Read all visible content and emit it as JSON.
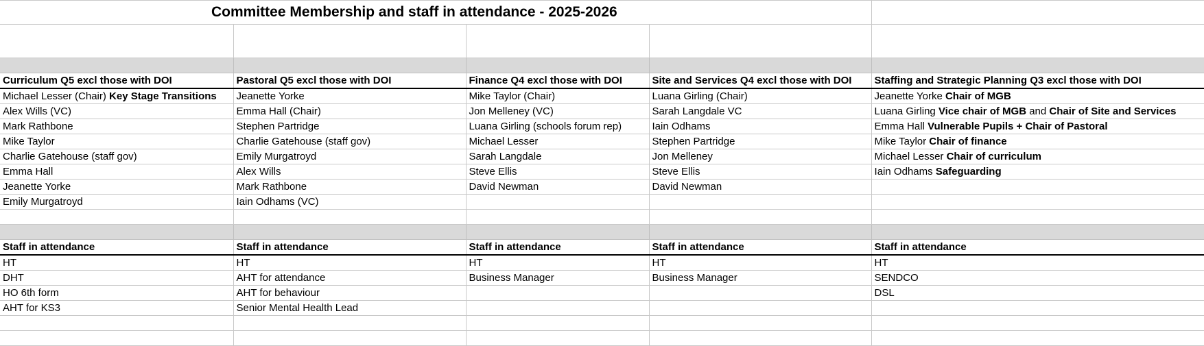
{
  "title": "Committee Membership and staff in attendance - 2025-2026",
  "committees": [
    {
      "header": "Curriculum  Q5 excl those with DOI",
      "members": [
        [
          {
            "t": "Michael Lesser (Chair) "
          },
          {
            "t": "Key Stage Transitions",
            "b": true
          }
        ],
        [
          {
            "t": "Alex Wills (VC)"
          }
        ],
        [
          {
            "t": "Mark Rathbone"
          }
        ],
        [
          {
            "t": "Mike Taylor"
          }
        ],
        [
          {
            "t": "Charlie Gatehouse (staff gov)"
          }
        ],
        [
          {
            "t": "Emma Hall"
          }
        ],
        [
          {
            "t": "Jeanette Yorke"
          }
        ],
        [
          {
            "t": "Emily Murgatroyd"
          }
        ]
      ],
      "staff_header": "Staff in attendance",
      "staff": [
        "HT",
        "DHT",
        "HO 6th form",
        "AHT for KS3"
      ]
    },
    {
      "header": "Pastoral  Q5 excl those with DOI",
      "members": [
        [
          {
            "t": "Jeanette Yorke"
          }
        ],
        [
          {
            "t": "Emma Hall  (Chair)"
          }
        ],
        [
          {
            "t": "Stephen Partridge"
          }
        ],
        [
          {
            "t": "Charlie Gatehouse (staff gov)"
          }
        ],
        [
          {
            "t": "Emily Murgatroyd"
          }
        ],
        [
          {
            "t": "Alex Wills"
          }
        ],
        [
          {
            "t": "Mark Rathbone"
          }
        ],
        [
          {
            "t": "Iain Odhams  (VC)"
          }
        ]
      ],
      "staff_header": "Staff in attendance",
      "staff": [
        "HT",
        "AHT for attendance",
        "AHT for behaviour",
        "Senior Mental Health Lead"
      ]
    },
    {
      "header": "Finance  Q4 excl those with DOI",
      "members": [
        [
          {
            "t": "Mike Taylor (Chair)"
          }
        ],
        [
          {
            "t": "Jon Melleney (VC)"
          }
        ],
        [
          {
            "t": "Luana Girling (schools forum rep)"
          }
        ],
        [
          {
            "t": "Michael Lesser"
          }
        ],
        [
          {
            "t": "Sarah Langdale"
          }
        ],
        [
          {
            "t": "Steve Ellis"
          }
        ],
        [
          {
            "t": "David Newman"
          }
        ]
      ],
      "staff_header": "Staff in attendance",
      "staff": [
        "HT",
        "Business Manager"
      ]
    },
    {
      "header": "Site and Services  Q4 excl those with DOI",
      "members": [
        [
          {
            "t": "Luana Girling (Chair)"
          }
        ],
        [
          {
            "t": "Sarah Langdale VC"
          }
        ],
        [
          {
            "t": "Iain Odhams"
          }
        ],
        [
          {
            "t": "Stephen Partridge"
          }
        ],
        [
          {
            "t": "Jon Melleney"
          }
        ],
        [
          {
            "t": "Steve Ellis"
          }
        ],
        [
          {
            "t": "David Newman"
          }
        ]
      ],
      "staff_header": "Staff in attendance",
      "staff": [
        "HT",
        "Business Manager"
      ]
    },
    {
      "header": "Staffing and Strategic Planning Q3 excl those with DOI",
      "members": [
        [
          {
            "t": "Jeanette Yorke "
          },
          {
            "t": "Chair of MGB",
            "b": true
          }
        ],
        [
          {
            "t": "Luana Girling "
          },
          {
            "t": "Vice chair of MGB",
            "b": true
          },
          {
            "t": " and "
          },
          {
            "t": "Chair of Site and Services",
            "b": true
          }
        ],
        [
          {
            "t": "Emma Hall "
          },
          {
            "t": "Vulnerable Pupils + Chair of Pastoral",
            "b": true
          }
        ],
        [
          {
            "t": "Mike Taylor "
          },
          {
            "t": "Chair of finance",
            "b": true
          }
        ],
        [
          {
            "t": "Michael Lesser "
          },
          {
            "t": "Chair of curriculum",
            "b": true
          }
        ],
        [
          {
            "t": "Iain Odhams "
          },
          {
            "t": "Safeguarding",
            "b": true
          }
        ]
      ],
      "staff_header": "Staff in attendance",
      "staff": [
        "HT",
        "SENDCO",
        "DSL"
      ]
    }
  ]
}
